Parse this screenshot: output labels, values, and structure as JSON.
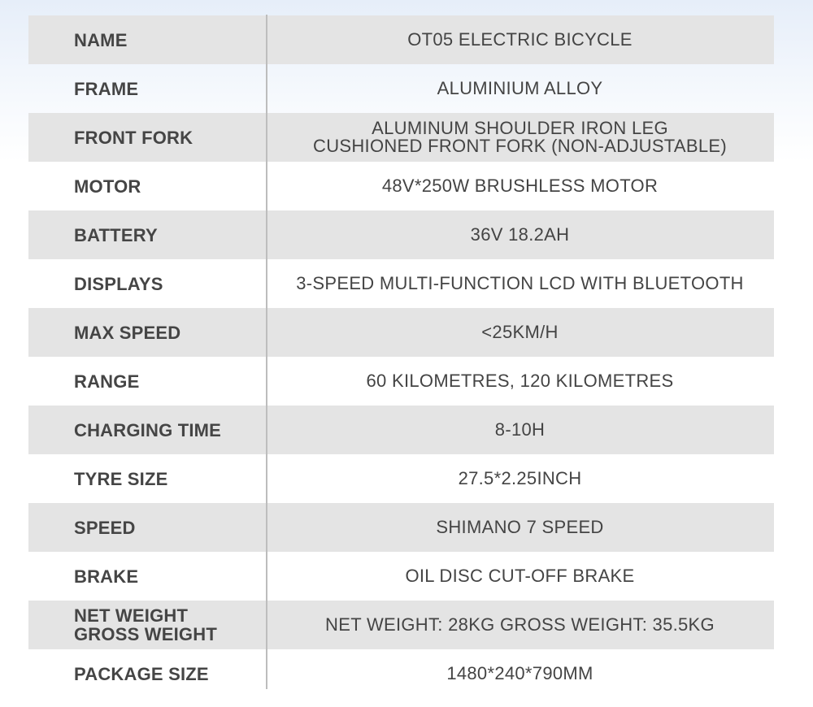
{
  "specs": [
    {
      "label": "NAME",
      "value": "OT05 ELECTRIC BICYCLE"
    },
    {
      "label": "FRAME",
      "value": "ALUMINIUM ALLOY"
    },
    {
      "label": "FRONT FORK",
      "value": "ALUMINUM SHOULDER IRON LEG",
      "value2": "CUSHIONED FRONT FORK (NON-ADJUSTABLE)"
    },
    {
      "label": "MOTOR",
      "value": "48V*250W BRUSHLESS MOTOR"
    },
    {
      "label": "BATTERY",
      "value": "36V 18.2AH"
    },
    {
      "label": "DISPLAYS",
      "value": "3-SPEED MULTI-FUNCTION LCD WITH BLUETOOTH"
    },
    {
      "label": "MAX SPEED",
      "value": "<25KM/H"
    },
    {
      "label": "RANGE",
      "value": "60 KILOMETRES, 120 KILOMETRES"
    },
    {
      "label": "CHARGING TIME",
      "value": "8-10H"
    },
    {
      "label": "TYRE SIZE",
      "value": "27.5*2.25INCH"
    },
    {
      "label": "SPEED",
      "value": "SHIMANO 7 SPEED"
    },
    {
      "label": "BRAKE",
      "value": "OIL DISC CUT-OFF BRAKE"
    },
    {
      "label": "NET WEIGHT",
      "label2": "GROSS WEIGHT",
      "value": "NET WEIGHT: 28KG GROSS WEIGHT: 35.5KG"
    },
    {
      "label": "PACKAGE SIZE",
      "value": "1480*240*790MM"
    }
  ],
  "colors": {
    "stripe": "#e4e4e4",
    "text": "#444444",
    "divider": "#bdbdbd"
  }
}
